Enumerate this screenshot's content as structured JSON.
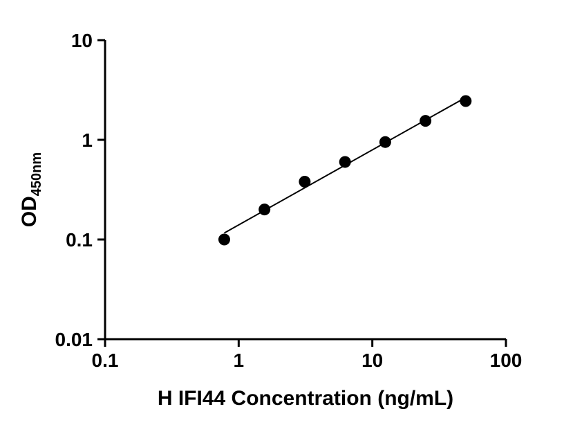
{
  "chart_data": {
    "type": "scatter",
    "title": "",
    "xlabel": "H IFI44 Concentration (ng/mL)",
    "ylabel_main": "OD",
    "ylabel_sub": "450nm",
    "xscale": "log",
    "yscale": "log",
    "xlim": [
      0.1,
      100
    ],
    "ylim": [
      0.01,
      10
    ],
    "x": [
      0.78,
      1.56,
      3.12,
      6.25,
      12.5,
      25,
      50
    ],
    "y": [
      0.1,
      0.2,
      0.38,
      0.6,
      0.95,
      1.55,
      2.45
    ],
    "x_ticks": [
      {
        "value": 0.1,
        "label": "0.1"
      },
      {
        "value": 1,
        "label": "1"
      },
      {
        "value": 10,
        "label": "10"
      },
      {
        "value": 100,
        "label": "100"
      }
    ],
    "y_ticks": [
      {
        "value": 10,
        "label": "10"
      },
      {
        "value": 1,
        "label": "1"
      },
      {
        "value": 0.1,
        "label": "0.1"
      },
      {
        "value": 0.01,
        "label": "0.01"
      }
    ],
    "grid": false,
    "legend": false,
    "trendline": true,
    "axis_color": "#000000",
    "line_color": "#000000",
    "marker_color": "#000000"
  }
}
